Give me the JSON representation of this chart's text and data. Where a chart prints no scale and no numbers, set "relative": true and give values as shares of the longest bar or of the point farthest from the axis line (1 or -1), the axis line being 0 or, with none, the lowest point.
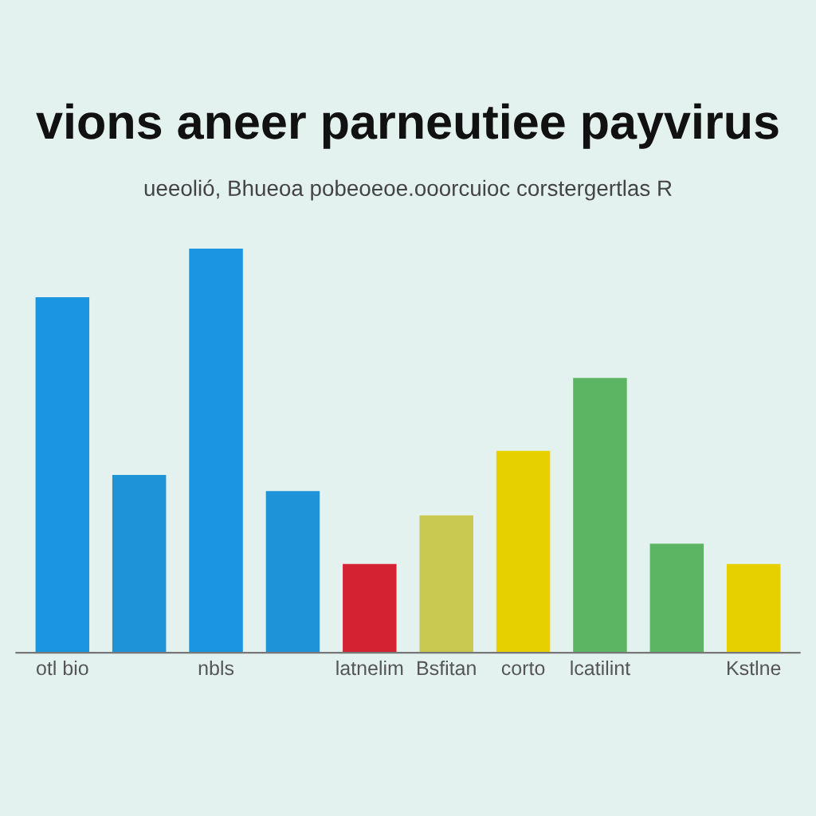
{
  "chart_data": {
    "type": "bar",
    "relative": true,
    "title": "vions aneer parneutiee payvirus",
    "subtitle": "ueeolió, Bhueoa pobeoeoe.ooorcuioc corstergertlas R",
    "categories": [
      "otl bio",
      null,
      "nbls",
      null,
      "latnelim",
      "Bsfitan",
      "corto",
      "lcatilint",
      null,
      "Kstlne"
    ],
    "values": [
      0.88,
      0.44,
      1.0,
      0.4,
      0.22,
      0.34,
      0.5,
      0.68,
      0.27,
      0.22
    ],
    "colors": [
      "#1a96e0",
      "#1e93d8",
      "#1a96e0",
      "#1e93d8",
      "#d42233",
      "#c9c850",
      "#e6d000",
      "#5cb562",
      "#5cb562",
      "#e6d000"
    ],
    "grid": false
  }
}
